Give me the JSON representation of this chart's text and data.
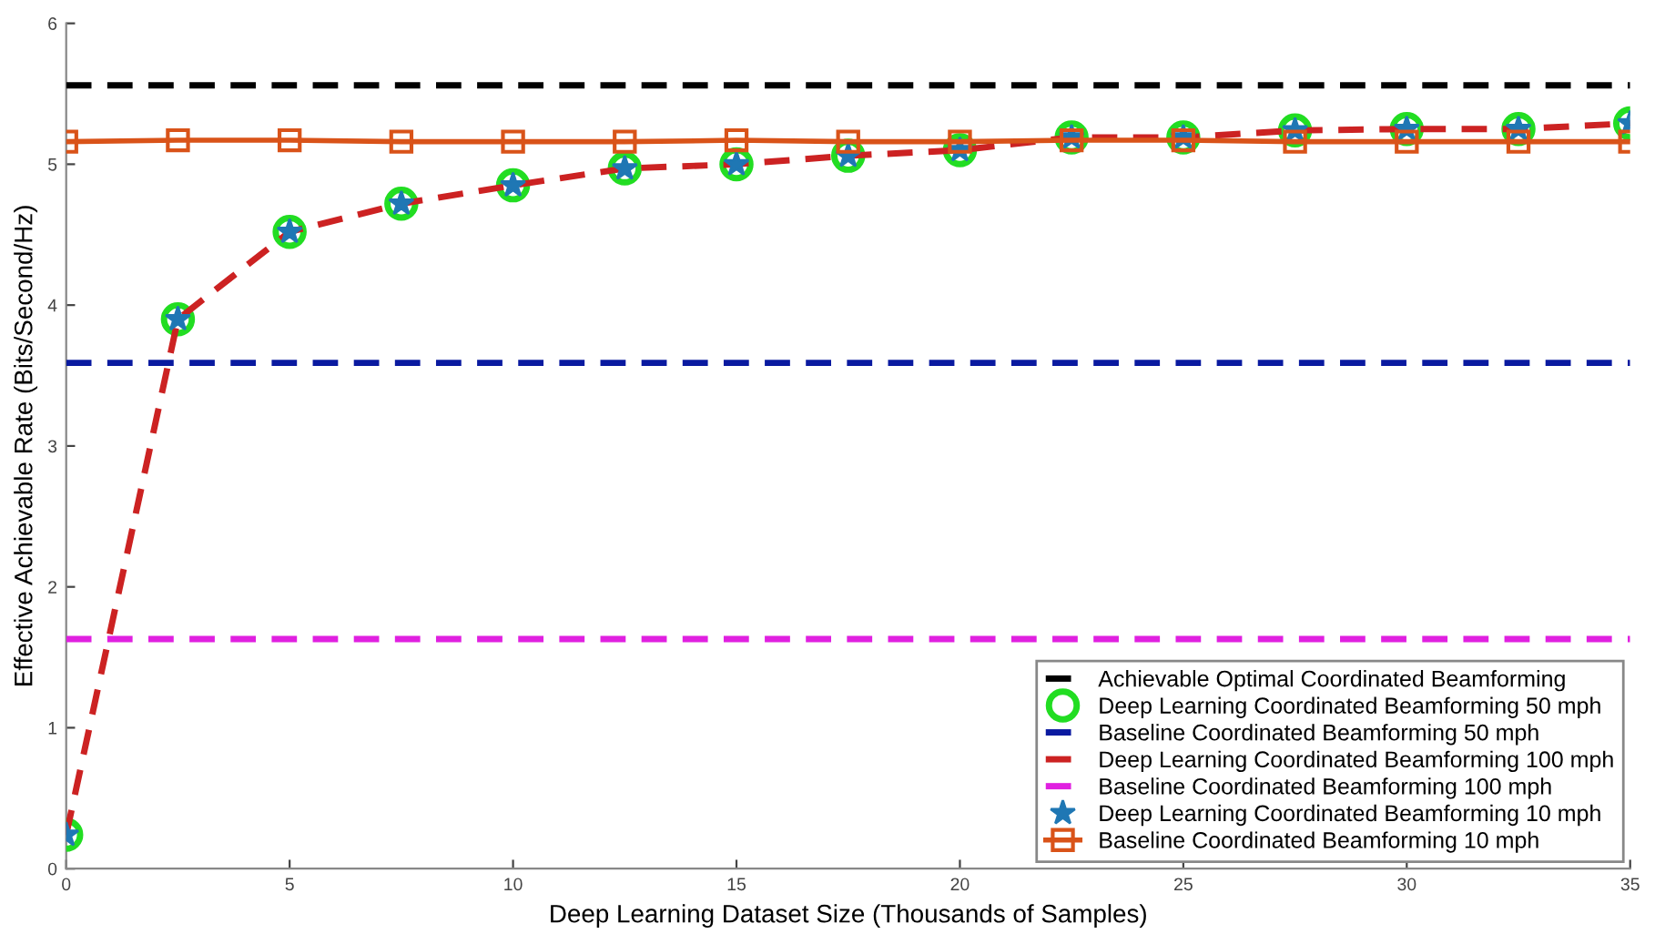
{
  "chart_data": {
    "type": "line",
    "xlabel": "Deep Learning Dataset Size (Thousands of Samples)",
    "ylabel": "Effective Achievable Rate (Bits/Second/Hz)",
    "xlim": [
      0,
      35
    ],
    "xticks": [
      0,
      5,
      10,
      15,
      20,
      25,
      30,
      35
    ],
    "ylim": [
      0,
      6
    ],
    "yticks": [
      0,
      1,
      2,
      3,
      4,
      5,
      6
    ],
    "grid": false,
    "legend": "bottom right",
    "series": [
      {
        "name": "Achievable Optimal Coordinated Beamforming",
        "color": "#000000",
        "line_style": "dashed",
        "marker": "none",
        "x": [
          0,
          35
        ],
        "values": [
          5.56,
          5.56
        ]
      },
      {
        "name": "Deep Learning Coordinated Beamforming 50 mph",
        "type": "scatter",
        "color": "#22dd22",
        "marker": "circle",
        "x": [
          0,
          2.5,
          5,
          7.5,
          10,
          12.5,
          15,
          17.5,
          20,
          22.5,
          25,
          27.5,
          30,
          32.5,
          35
        ],
        "values": [
          0.24,
          3.9,
          4.52,
          4.72,
          4.85,
          4.97,
          5.0,
          5.06,
          5.1,
          5.19,
          5.19,
          5.24,
          5.25,
          5.25,
          5.29
        ]
      },
      {
        "name": "Baseline Coordinated Beamforming 50 mph",
        "color": "#0a1aa0",
        "line_style": "dashed",
        "marker": "none",
        "x": [
          0,
          35
        ],
        "values": [
          3.59,
          3.59
        ]
      },
      {
        "name": "Deep Learning Coordinated Beamforming 100 mph",
        "color": "#cc2222",
        "line_style": "dashed",
        "marker": "none",
        "x": [
          0,
          2.5,
          5,
          7.5,
          10,
          12.5,
          15,
          17.5,
          20,
          22.5,
          25,
          27.5,
          30,
          32.5,
          35
        ],
        "values": [
          0.24,
          3.9,
          4.52,
          4.72,
          4.85,
          4.97,
          5.0,
          5.06,
          5.1,
          5.19,
          5.19,
          5.24,
          5.25,
          5.25,
          5.29
        ]
      },
      {
        "name": "Baseline Coordinated Beamforming 100 mph",
        "color": "#e020e0",
        "line_style": "dashed",
        "marker": "none",
        "x": [
          0,
          35
        ],
        "values": [
          1.63,
          1.63
        ]
      },
      {
        "name": "Deep Learning Coordinated Beamforming 10 mph",
        "type": "scatter",
        "color": "#1f77b4",
        "marker": "star",
        "x": [
          0,
          2.5,
          5,
          7.5,
          10,
          12.5,
          15,
          17.5,
          20,
          22.5,
          25,
          27.5,
          30,
          32.5,
          35
        ],
        "values": [
          0.24,
          3.9,
          4.52,
          4.72,
          4.85,
          4.97,
          5.0,
          5.06,
          5.1,
          5.19,
          5.19,
          5.24,
          5.25,
          5.25,
          5.29
        ]
      },
      {
        "name": "Baseline Coordinated Beamforming 10 mph",
        "color": "#d95319",
        "line_style": "solid",
        "marker": "square",
        "x": [
          0,
          2.5,
          5,
          7.5,
          10,
          12.5,
          15,
          17.5,
          20,
          22.5,
          25,
          27.5,
          30,
          32.5,
          35
        ],
        "values": [
          5.16,
          5.17,
          5.17,
          5.16,
          5.16,
          5.16,
          5.17,
          5.16,
          5.16,
          5.17,
          5.17,
          5.16,
          5.16,
          5.16,
          5.16
        ]
      }
    ]
  }
}
